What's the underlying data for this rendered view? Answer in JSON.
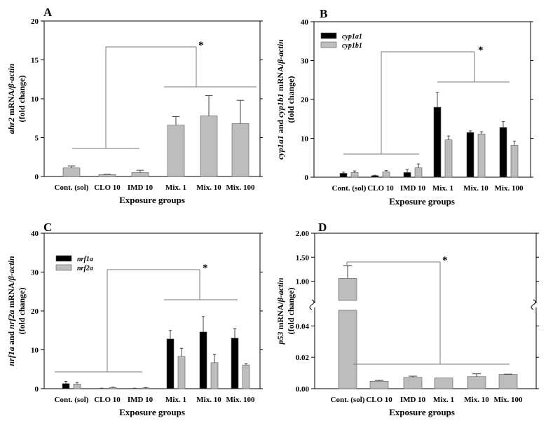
{
  "colors": {
    "series1": "#000000",
    "series2": "#bdbdbd",
    "axis": "#000000",
    "bracket": "#777777"
  },
  "chart_data": [
    {
      "panel": "A",
      "type": "bar",
      "xlabel": "Exposure groups",
      "ylabel_parts": [
        [
          "ahr2",
          true
        ],
        [
          " mRNA/",
          false
        ],
        [
          "β-actin",
          true
        ]
      ],
      "ylabel_line2": "(fold change)",
      "categories": [
        "Cont. (sol)",
        "CLO 10",
        "IMD 10",
        "Mix. 1",
        "Mix. 10",
        "Mix. 100"
      ],
      "ylim": [
        0,
        20
      ],
      "yticks": [
        0,
        5,
        10,
        15,
        20
      ],
      "series": [
        {
          "name": "ahr2",
          "values": [
            1.1,
            0.25,
            0.5,
            6.6,
            7.8,
            6.8
          ],
          "errors": [
            0.25,
            0.05,
            0.3,
            1.1,
            2.6,
            3.0
          ]
        }
      ],
      "significance": "*"
    },
    {
      "panel": "B",
      "type": "bar",
      "xlabel": "Exposure groups",
      "ylabel_parts": [
        [
          "cyp1a1",
          true
        ],
        [
          " and ",
          false
        ],
        [
          "cyp1b1",
          true
        ],
        [
          " mRNA/",
          false
        ],
        [
          "β-actin",
          true
        ]
      ],
      "ylabel_line2": "(fold change)",
      "categories": [
        "Cont. (sol)",
        "CLO 10",
        "IMD 10",
        "Mix. 1",
        "Mix. 10",
        "Mix. 100"
      ],
      "ylim": [
        0,
        40
      ],
      "yticks": [
        0,
        10,
        20,
        30,
        40
      ],
      "legend": [
        "cyp1a1",
        "cyp1b1"
      ],
      "series": [
        {
          "name": "cyp1a1",
          "values": [
            1.0,
            0.4,
            1.2,
            18.0,
            11.5,
            12.8
          ],
          "errors": [
            0.3,
            0.1,
            0.8,
            3.8,
            0.4,
            1.5
          ]
        },
        {
          "name": "cyp1b1",
          "values": [
            1.2,
            1.4,
            2.4,
            9.6,
            11.1,
            8.2
          ],
          "errors": [
            0.4,
            0.3,
            1.0,
            1.0,
            0.6,
            1.1
          ]
        }
      ],
      "significance": "*"
    },
    {
      "panel": "C",
      "type": "bar",
      "xlabel": "Exposure groups",
      "ylabel_parts": [
        [
          "nrf1a",
          true
        ],
        [
          " and ",
          false
        ],
        [
          "nrf2a",
          true
        ],
        [
          " mRNA/",
          false
        ],
        [
          "β-actin",
          true
        ]
      ],
      "ylabel_line2": "(fold change)",
      "categories": [
        "Cont. (sol)",
        "CLO 10",
        "IMD 10",
        "Mix. 1",
        "Mix. 10",
        "Mix. 100"
      ],
      "ylim": [
        0,
        40
      ],
      "yticks": [
        0,
        10,
        20,
        30,
        40
      ],
      "legend": [
        "nrf1a",
        "nrf2a"
      ],
      "series": [
        {
          "name": "nrf1a",
          "values": [
            1.3,
            0.1,
            0.1,
            12.8,
            14.6,
            13.0
          ],
          "errors": [
            0.6,
            0.05,
            0.05,
            2.2,
            4.0,
            2.4
          ]
        },
        {
          "name": "nrf2a",
          "values": [
            1.2,
            0.3,
            0.2,
            8.3,
            6.7,
            6.1
          ],
          "errors": [
            0.4,
            0.1,
            0.1,
            2.1,
            2.1,
            0.3
          ]
        }
      ],
      "significance": "*"
    },
    {
      "panel": "D",
      "type": "bar",
      "xlabel": "Exposure groups",
      "ylabel_parts": [
        [
          "p53",
          true
        ],
        [
          " mRNA/",
          false
        ],
        [
          "β-actin",
          true
        ]
      ],
      "ylabel_line2": "(fold change)",
      "categories": [
        "Cont. (sol)",
        "CLO 10",
        "IMD 10",
        "Mix. 1",
        "Mix. 10",
        "Mix. 100"
      ],
      "broken_axis": true,
      "upper_ylim": [
        0.6,
        2.0
      ],
      "upper_yticks": [
        "1.00",
        "1.50",
        "2.00"
      ],
      "lower_ylim": [
        0,
        0.05
      ],
      "lower_yticks": [
        "0.00",
        "0.02",
        "0.04"
      ],
      "series": [
        {
          "name": "p53",
          "values": [
            1.06,
            0.0048,
            0.0072,
            0.0068,
            0.0077,
            0.0091
          ],
          "errors": [
            0.26,
            0.0005,
            0.0008,
            0.0,
            0.0018,
            0.0002
          ]
        }
      ],
      "significance": "*"
    }
  ]
}
